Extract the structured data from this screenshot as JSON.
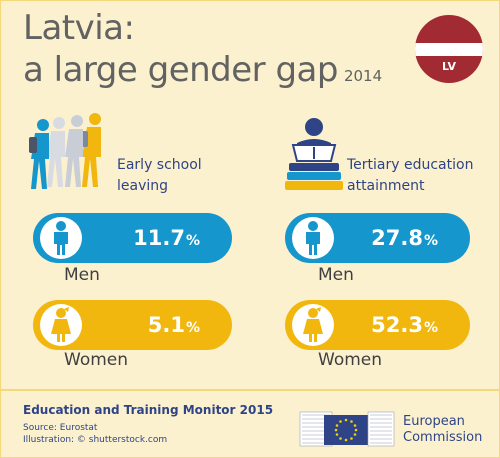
{
  "header": {
    "title_line1": "Latvia:",
    "title_line2": "a large gender gap",
    "year": "2014"
  },
  "flag": {
    "code": "LV",
    "colors": {
      "carmine": "#a12a33",
      "white": "#ffffff"
    }
  },
  "categories": [
    {
      "icon": "walking-students-icon",
      "label_line1": "Early school",
      "label_line2": "leaving",
      "men": {
        "value": "11.7",
        "unit": "%",
        "label": "Men"
      },
      "women": {
        "value": "5.1",
        "unit": "%",
        "label": "Women"
      }
    },
    {
      "icon": "graduate-books-icon",
      "label_line1": "Tertiary education",
      "label_line2": "attainment",
      "men": {
        "value": "27.8",
        "unit": "%",
        "label": "Men"
      },
      "women": {
        "value": "52.3",
        "unit": "%",
        "label": "Women"
      }
    }
  ],
  "footer": {
    "title": "Education and Training Monitor 2015",
    "source": "Source: Eurostat",
    "illustration": "Illustration: © shutterstock.com"
  },
  "publisher": {
    "line1": "European",
    "line2": "Commission"
  },
  "colors": {
    "background": "#fcf1cf",
    "men_pill": "#1596cc",
    "women_pill": "#f2b70e",
    "title_text": "#616261",
    "label_text": "#2e4486"
  }
}
